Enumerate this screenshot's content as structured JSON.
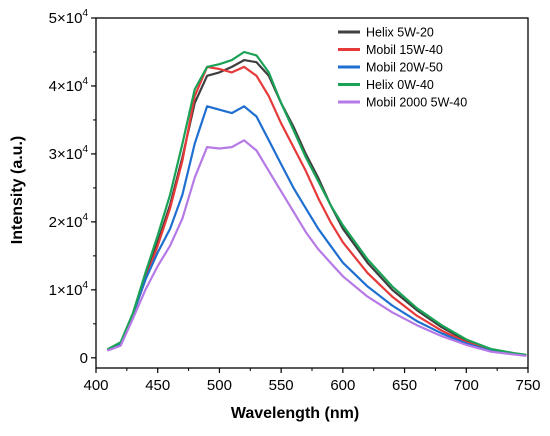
{
  "chart_data": {
    "type": "line",
    "title": "",
    "xlabel": "Wavelength (nm)",
    "ylabel": "Intensity (a.u.)",
    "xlim": [
      400,
      750
    ],
    "ylim": [
      -1500,
      50000
    ],
    "x_ticks": [
      400,
      450,
      500,
      550,
      600,
      650,
      700,
      750
    ],
    "x_tick_labels": [
      "400",
      "450",
      "500",
      "550",
      "600",
      "650",
      "700",
      "750"
    ],
    "y_ticks": [
      0,
      10000,
      20000,
      30000,
      40000,
      50000
    ],
    "y_tick_labels": [
      {
        "base": "0",
        "exp": ""
      },
      {
        "base": "1×10",
        "exp": "4"
      },
      {
        "base": "2×10",
        "exp": "4"
      },
      {
        "base": "3×10",
        "exp": "4"
      },
      {
        "base": "4×10",
        "exp": "4"
      },
      {
        "base": "5×10",
        "exp": "4"
      }
    ],
    "grid": false,
    "legend_position": "top-right",
    "x": [
      410,
      420,
      430,
      440,
      450,
      460,
      470,
      480,
      490,
      500,
      510,
      520,
      530,
      540,
      550,
      560,
      570,
      580,
      590,
      600,
      620,
      640,
      660,
      680,
      700,
      720,
      740,
      748
    ],
    "series": [
      {
        "name": "Helix 5W-20",
        "color": "#3f3f3f",
        "values": [
          1300,
          2200,
          6500,
          12000,
          17000,
          22500,
          29500,
          37500,
          41500,
          42000,
          42800,
          43800,
          43500,
          41500,
          37500,
          34000,
          30000,
          26500,
          22500,
          19000,
          14000,
          10000,
          7000,
          4500,
          2500,
          1200,
          600,
          400
        ]
      },
      {
        "name": "Mobil 15W-40",
        "color": "#e8393a",
        "values": [
          1200,
          2100,
          6400,
          11500,
          16500,
          22000,
          29000,
          38500,
          42800,
          42500,
          42000,
          42800,
          41500,
          38500,
          34500,
          31000,
          27500,
          23500,
          20000,
          17000,
          12500,
          9000,
          6200,
          4000,
          2300,
          1100,
          550,
          400
        ]
      },
      {
        "name": "Mobil 20W-50",
        "color": "#1f6fd1",
        "values": [
          1200,
          2100,
          6400,
          11500,
          15500,
          19000,
          24000,
          31500,
          37000,
          36500,
          36000,
          37000,
          35500,
          32000,
          28500,
          25000,
          22000,
          19000,
          16500,
          14000,
          10500,
          7700,
          5400,
          3600,
          2100,
          1000,
          500,
          350
        ]
      },
      {
        "name": "Helix 0W-40",
        "color": "#1aa357",
        "values": [
          1300,
          2300,
          6600,
          12500,
          18000,
          24000,
          31500,
          39500,
          42800,
          43200,
          43800,
          45000,
          44500,
          42000,
          37500,
          33500,
          29500,
          26000,
          22500,
          19500,
          14500,
          10500,
          7300,
          4800,
          2700,
          1300,
          650,
          450
        ]
      },
      {
        "name": "Mobil 2000 5W-40",
        "color": "#b57ae6",
        "values": [
          1100,
          1800,
          5800,
          10000,
          13500,
          16500,
          20500,
          26500,
          31000,
          30800,
          31000,
          32000,
          30500,
          27500,
          24500,
          21500,
          18500,
          16000,
          14000,
          12000,
          9000,
          6700,
          4800,
          3200,
          1900,
          900,
          450,
          300
        ]
      }
    ]
  }
}
